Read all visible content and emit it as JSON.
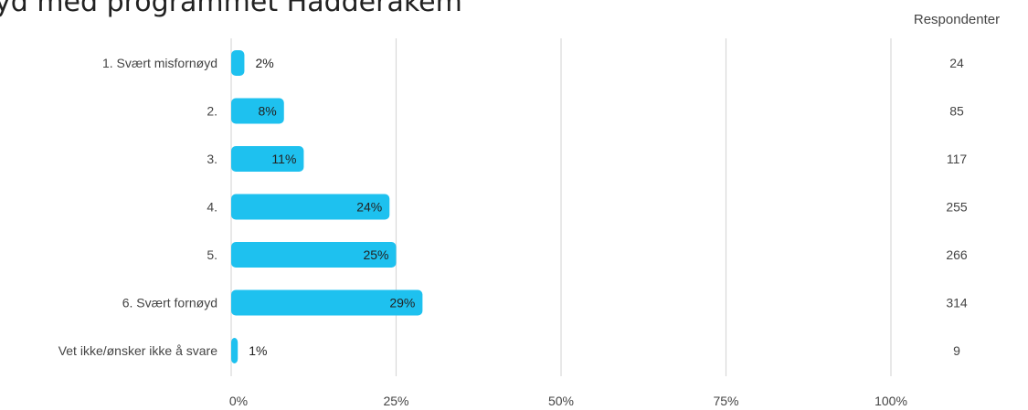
{
  "title": "yd med programmet Hadderakem",
  "column_header": "Respondenter",
  "colors": {
    "bar": "#1EC1EF",
    "grid": "#d9d9d9",
    "text": "#444444",
    "label": "#222222",
    "title": "#222222"
  },
  "chart_data": {
    "type": "bar",
    "orientation": "horizontal",
    "title": "yd med programmet Hadderakem",
    "categories": [
      "1. Svært misfornøyd",
      "2.",
      "3.",
      "4.",
      "5.",
      "6. Svært fornøyd",
      "Vet ikke/ønsker ikke å svare"
    ],
    "values": [
      2,
      8,
      11,
      24,
      25,
      29,
      1
    ],
    "value_labels": [
      "2%",
      "8%",
      "11%",
      "24%",
      "25%",
      "29%",
      "1%"
    ],
    "respondents": [
      24,
      85,
      117,
      255,
      266,
      314,
      9
    ],
    "xlim": [
      0,
      100
    ],
    "xticks": [
      "0%",
      "25%",
      "50%",
      "75%",
      "100%"
    ],
    "xtick_values": [
      0,
      25,
      50,
      75,
      100
    ],
    "grid": true,
    "legend": "none"
  }
}
